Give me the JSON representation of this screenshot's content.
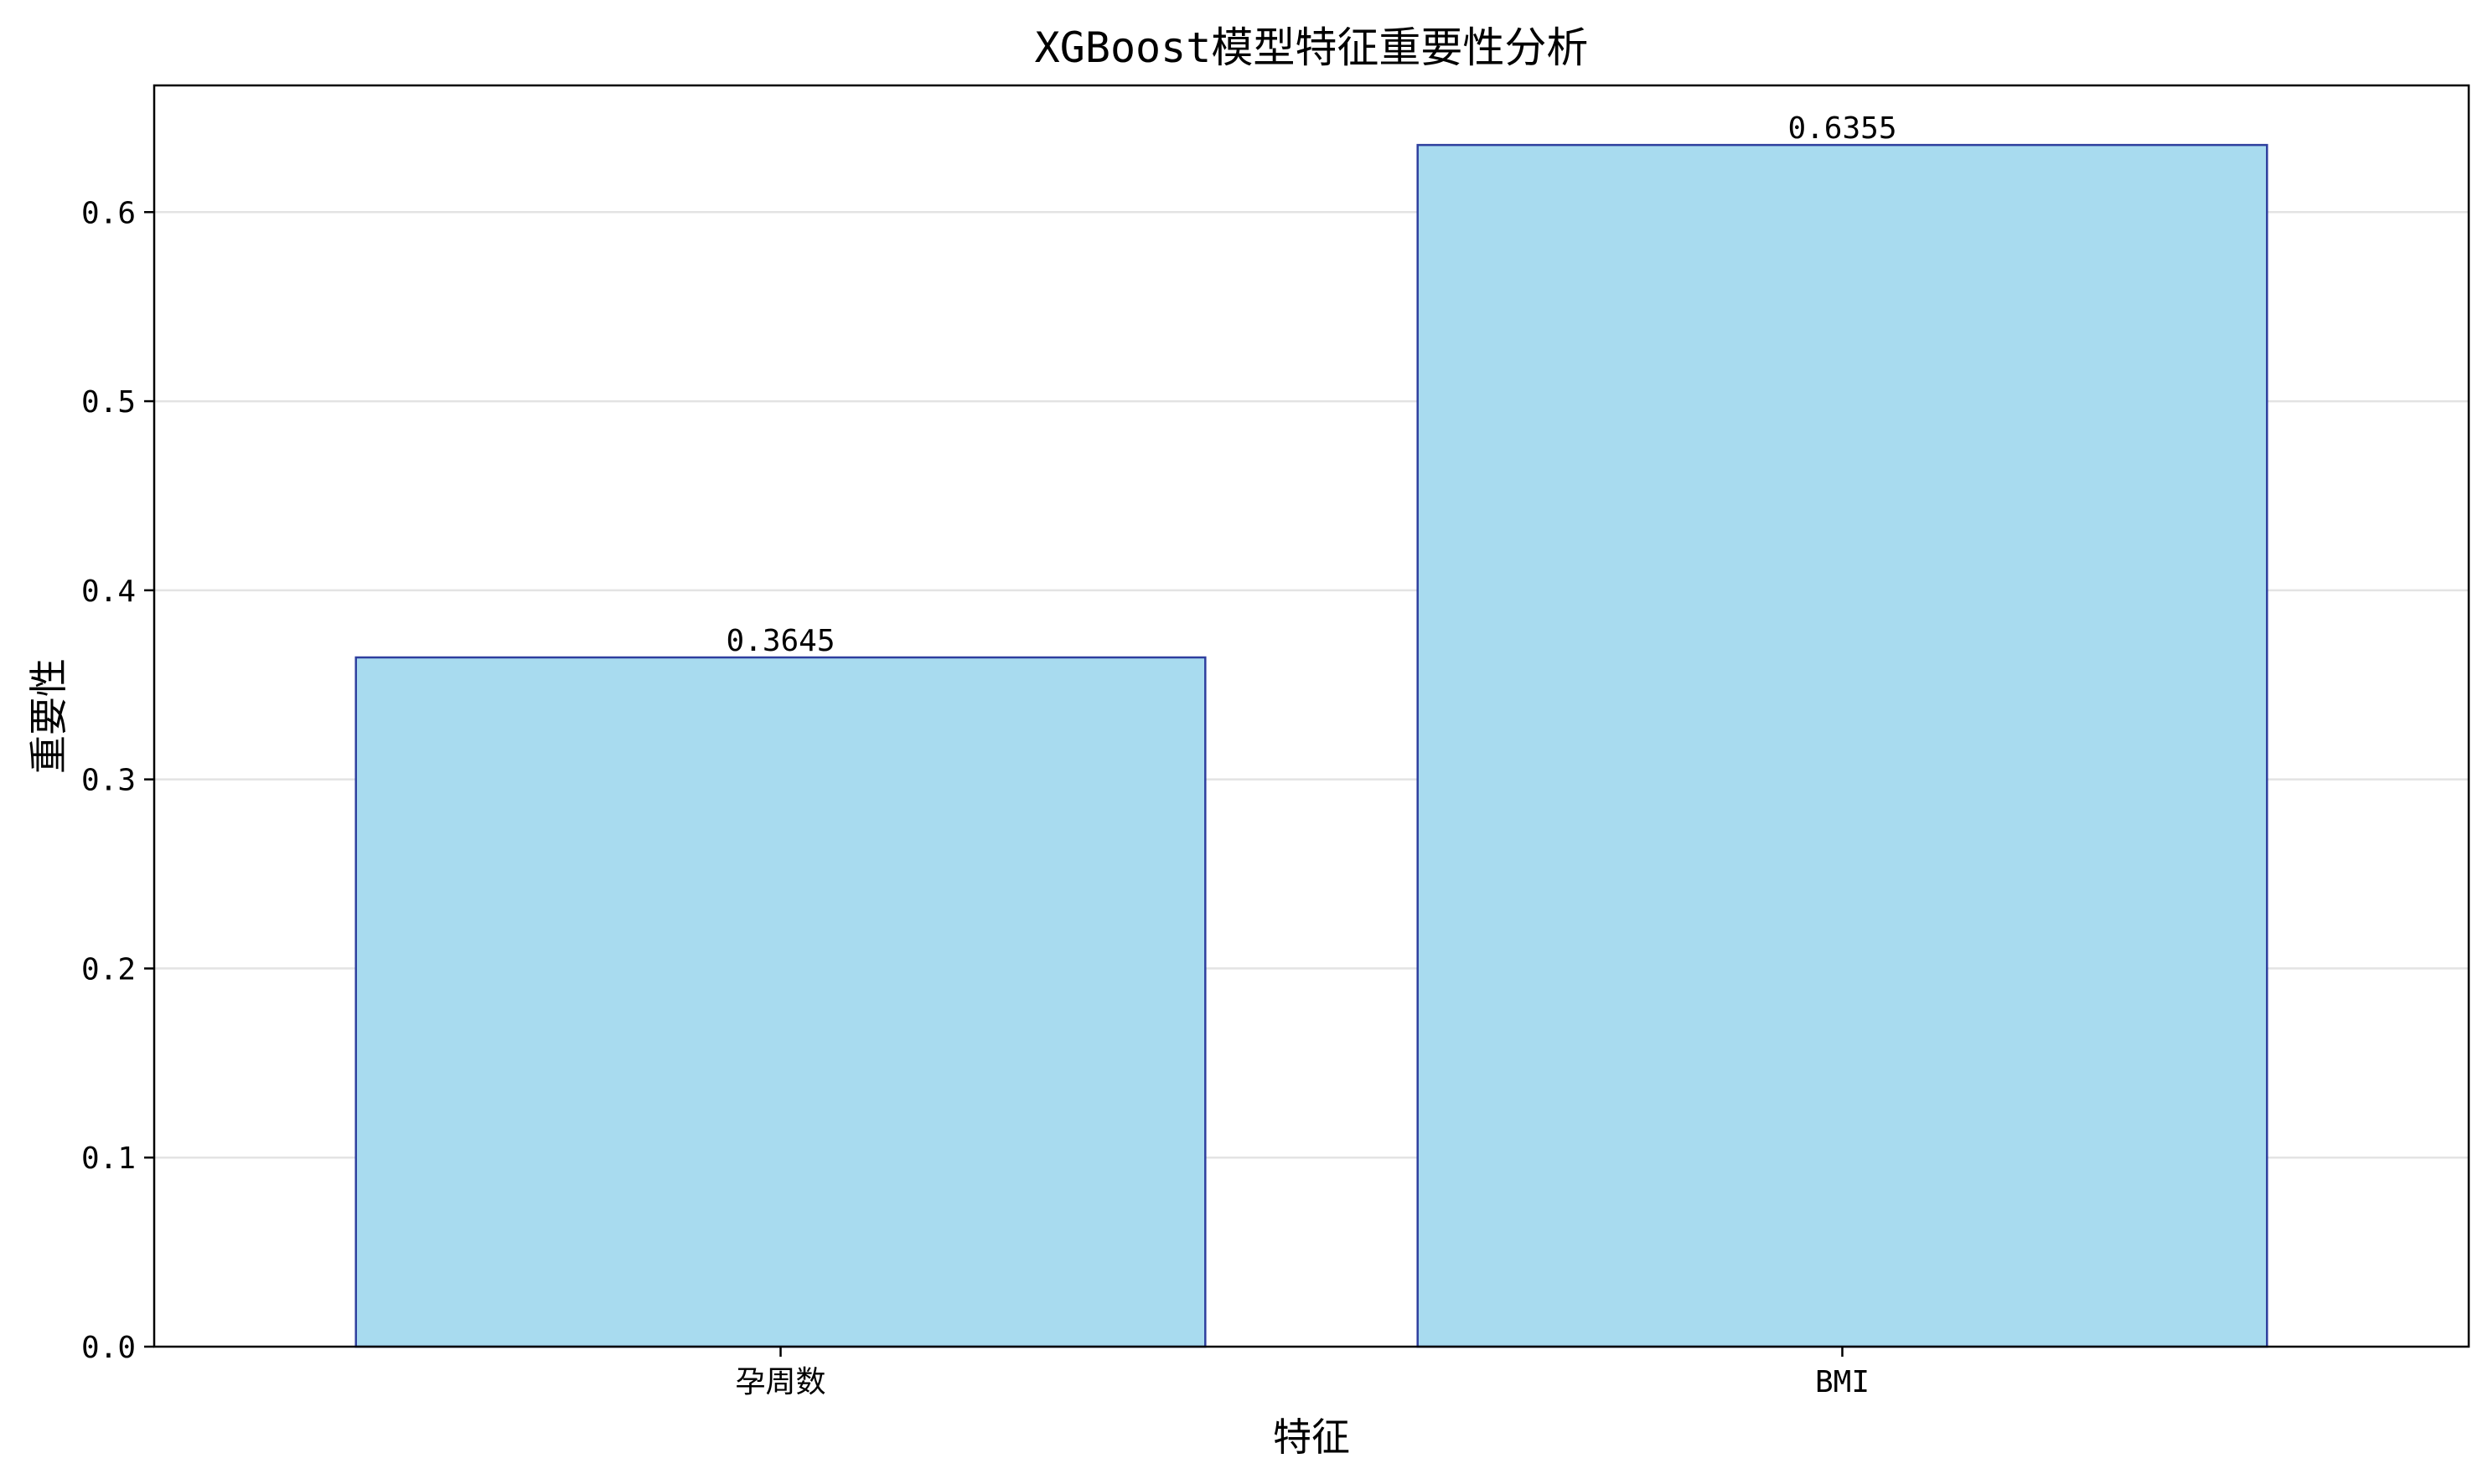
{
  "chart_data": {
    "type": "bar",
    "title": "XGBoost模型特征重要性分析",
    "xlabel": "特征",
    "ylabel": "重要性",
    "categories": [
      "孕周数",
      "BMI"
    ],
    "values": [
      0.3645,
      0.6355
    ],
    "value_labels": [
      "0.3645",
      "0.6355"
    ],
    "ylim": [
      0,
      0.667
    ],
    "yticks": [
      0.0,
      0.1,
      0.2,
      0.3,
      0.4,
      0.5,
      0.6
    ],
    "ytick_labels": [
      "0.0",
      "0.1",
      "0.2",
      "0.3",
      "0.4",
      "0.5",
      "0.6"
    ],
    "grid": "y-major",
    "legend": "none",
    "colors": {
      "bar_fill": "#a8dbef",
      "bar_edge": "#2e3f9e",
      "grid": "#e3e3e3",
      "axis": "#000000",
      "text": "#000000"
    }
  }
}
